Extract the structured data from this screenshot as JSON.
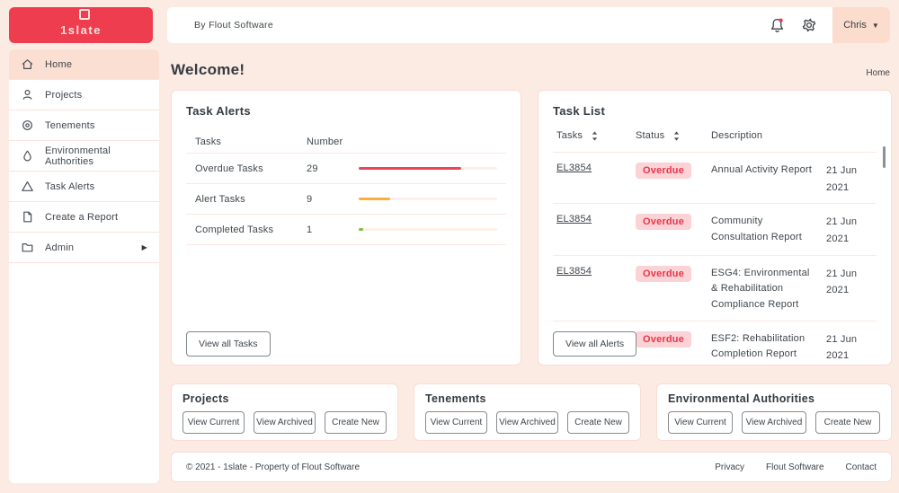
{
  "brand": {
    "logo_text": "1slate",
    "topbar_caption": "By Flout Software",
    "user_name": "Chris"
  },
  "colors": {
    "primary_red": "#ee3d4e",
    "page_bg": "#fcebe3",
    "active_item_bg": "#fcdfd3",
    "user_chip_bg": "#fbdccd",
    "overdue_badge_bg": "#fbd2d6",
    "overdue_badge_text": "#e8374a",
    "bar_red": "#ee4458",
    "bar_orange": "#f8b13d",
    "bar_green": "#7cc13a",
    "bar_track": "#fdf0ea"
  },
  "sidebar": {
    "items": [
      {
        "icon": "home-icon",
        "label": "Home",
        "active": true
      },
      {
        "icon": "person-icon",
        "label": "Projects",
        "active": false
      },
      {
        "icon": "target-icon",
        "label": "Tenements",
        "active": false
      },
      {
        "icon": "droplet-icon",
        "label": "Environmental Authorities",
        "active": false
      },
      {
        "icon": "warning-triangle-icon",
        "label": "Task Alerts",
        "active": false
      },
      {
        "icon": "document-icon",
        "label": "Create a Report",
        "active": false
      },
      {
        "icon": "folder-icon",
        "label": "Admin",
        "active": false,
        "has_submenu": true
      }
    ]
  },
  "page": {
    "welcome": "Welcome!",
    "breadcrumb": "Home"
  },
  "task_alerts": {
    "title": "Task Alerts",
    "columns": {
      "tasks": "Tasks",
      "number": "Number"
    },
    "rows": [
      {
        "label": "Overdue Tasks",
        "number": "29",
        "pct": 74,
        "color": "#ee4458"
      },
      {
        "label": "Alert Tasks",
        "number": "9",
        "pct": 23,
        "color": "#f8b13d"
      },
      {
        "label": "Completed Tasks",
        "number": "1",
        "pct": 3,
        "color": "#7cc13a"
      }
    ],
    "button": "View all Tasks"
  },
  "task_list": {
    "title": "Task List",
    "columns": {
      "tasks": "Tasks",
      "status": "Status",
      "description": "Description"
    },
    "rows": [
      {
        "task": "EL3854",
        "status": "Overdue",
        "description": "Annual Activity Report",
        "date": "21 Jun 2021"
      },
      {
        "task": "EL3854",
        "status": "Overdue",
        "description": "Community Consultation Report",
        "date": "21 Jun 2021"
      },
      {
        "task": "EL3854",
        "status": "Overdue",
        "description": "ESG4: Environmental & Rehabilitation Compliance Report",
        "date": "21 Jun 2021"
      },
      {
        "task": "EL3854",
        "status": "Overdue",
        "description": "ESF2: Rehabilitation Completion Report",
        "date": "21 Jun 2021"
      }
    ],
    "button": "View all Alerts"
  },
  "quick_cards": [
    {
      "title": "Projects",
      "buttons": [
        "View Current",
        "View Archived",
        "Create New"
      ]
    },
    {
      "title": "Tenements",
      "buttons": [
        "View Current",
        "View Archived",
        "Create New"
      ]
    },
    {
      "title": "Environmental Authorities",
      "buttons": [
        "View Current",
        "View Archived",
        "Create New"
      ]
    }
  ],
  "footer": {
    "copyright": "© 2021 - 1slate - Property of Flout Software",
    "links": [
      "Privacy",
      "Flout Software",
      "Contact"
    ]
  }
}
